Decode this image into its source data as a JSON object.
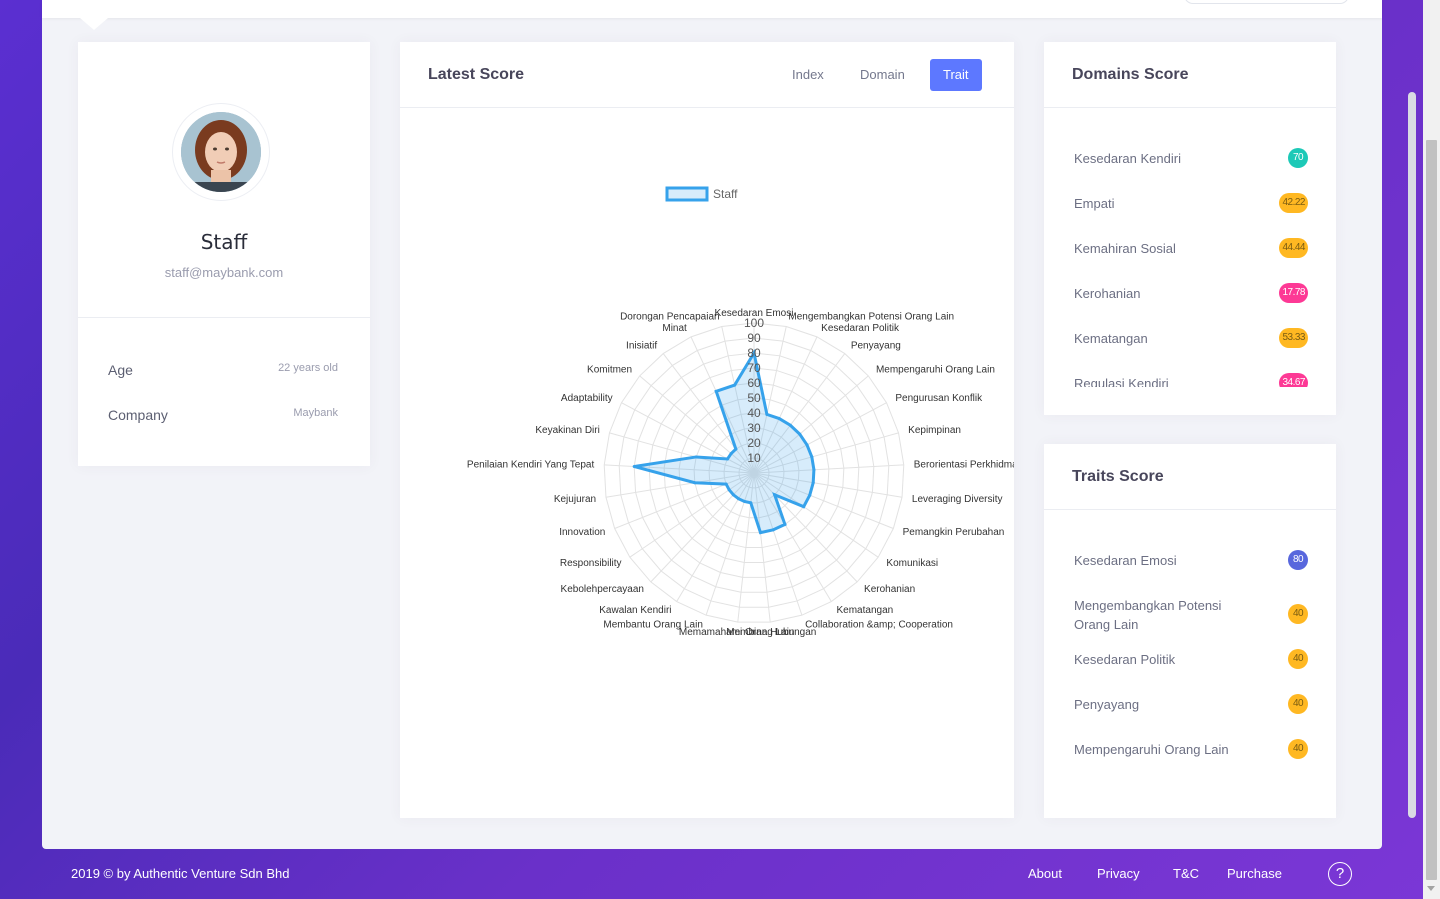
{
  "profile": {
    "name": "Staff",
    "email": "staff@maybank.com",
    "age_label": "Age",
    "age_value": "22 years old",
    "company_label": "Company",
    "company_value": "Maybank"
  },
  "score": {
    "title": "Latest Score",
    "tabs": [
      {
        "label": "Index",
        "active": false
      },
      {
        "label": "Domain",
        "active": false
      },
      {
        "label": "Trait",
        "active": true
      }
    ]
  },
  "domains": {
    "title": "Domains Score",
    "items": [
      {
        "label": "Kesedaran Kendiri",
        "value": "70",
        "color": "#1dc9b7"
      },
      {
        "label": "Empati",
        "value": "42.22",
        "color": "#ffb822"
      },
      {
        "label": "Kemahiran Sosial",
        "value": "44.44",
        "color": "#ffb822"
      },
      {
        "label": "Kerohanian",
        "value": "17.78",
        "color": "#fd3995"
      },
      {
        "label": "Kematangan",
        "value": "53.33",
        "color": "#ffb822"
      },
      {
        "label": "Regulasi Kendiri",
        "value": "34.67",
        "color": "#fd3995"
      }
    ]
  },
  "traits": {
    "title": "Traits Score",
    "items": [
      {
        "label": "Kesedaran Emosi",
        "value": "80",
        "color": "#5867dd"
      },
      {
        "label": "Mengembangkan Potensi Orang Lain",
        "value": "40",
        "color": "#ffb822"
      },
      {
        "label": "Kesedaran Politik",
        "value": "40",
        "color": "#ffb822"
      },
      {
        "label": "Penyayang",
        "value": "40",
        "color": "#ffb822"
      },
      {
        "label": "Mempengaruhi Orang Lain",
        "value": "40",
        "color": "#ffb822"
      }
    ]
  },
  "chart_data": {
    "type": "radar",
    "legend": [
      "Staff"
    ],
    "rlim": [
      0,
      100
    ],
    "ticks": [
      "10",
      "20",
      "30",
      "40",
      "50",
      "60",
      "70",
      "80",
      "90",
      "100"
    ],
    "categories": [
      "Kesedaran Emosi",
      "Mengembangkan Potensi Orang Lain",
      "Kesedaran Politik",
      "Penyayang",
      "Mempengaruhi Orang Lain",
      "Pengurusan Konflik",
      "Kepimpinan",
      "Berorientasi Perkhidmatan",
      "Leveraging Diversity",
      "Pemangkin Perubahan",
      "Komunikasi",
      "Kerohanian",
      "Kematangan",
      "Collaboration &amp; Cooperation",
      "Membina Hubungan",
      "Memamahami Orang Lain",
      "Membantu Orang Lain",
      "Kawalan Kendiri",
      "Kebolehpercayaan",
      "Responsibility",
      "Innovation",
      "Kejujuran",
      "Penilaian Kendiri Yang Tepat",
      "Keyakinan Diri",
      "Adaptability",
      "Komitmen",
      "Inisiatif",
      "Minat",
      "Dorongan Pencapaian"
    ],
    "series": [
      {
        "name": "Staff",
        "values": [
          80,
          40,
          40,
          40,
          40,
          40,
          40,
          40,
          40,
          40,
          40,
          20,
          40,
          40,
          40,
          20,
          20,
          20,
          20,
          20,
          20,
          40,
          80,
          40,
          20,
          20,
          20,
          60,
          60
        ]
      }
    ],
    "colors": {
      "line": "#36a2eb",
      "fill": "rgba(54,162,235,0.2)",
      "grid": "#e2e2e2"
    }
  },
  "footer": {
    "copyright_prefix": "2019 © by ",
    "company": "Authentic Venture Sdn Bhd",
    "links": [
      "About",
      "Privacy",
      "T&C",
      "Purchase"
    ],
    "help_icon": "?"
  }
}
